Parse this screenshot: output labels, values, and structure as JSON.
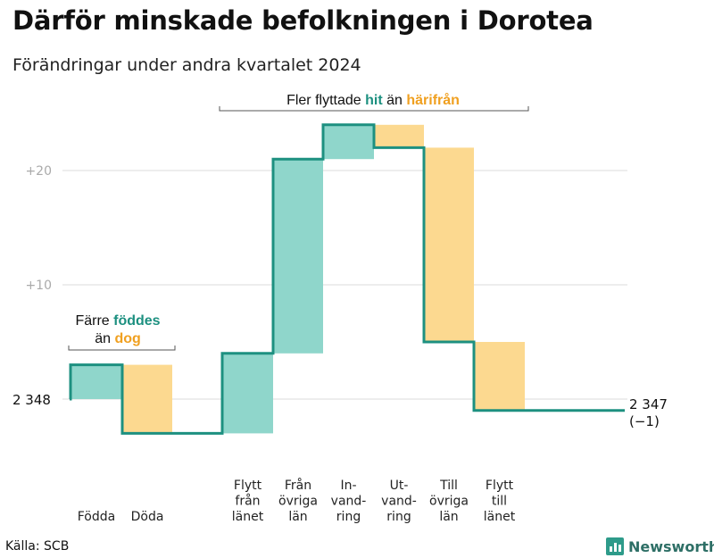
{
  "title": "Därför minskade befolkningen i Dorotea",
  "subtitle": "Förändringar under andra kvartalet 2024",
  "source": "Källa: SCB",
  "brand": "Newsworthy",
  "colors": {
    "increase": "#8fd6cb",
    "decrease": "#fcd990",
    "line": "#1d9080",
    "grid": "#e2e2e2",
    "teal_text": "#1d9080",
    "orange_text": "#f0a020"
  },
  "chart_data": {
    "type": "waterfall",
    "start_value": 2348,
    "start_label": "2 348",
    "end_value": 2347,
    "end_label": "2 347",
    "end_change_label": "(−1)",
    "ylim": [
      -3,
      24
    ],
    "yticks": [
      {
        "value": 20,
        "label": "+20"
      },
      {
        "value": 10,
        "label": "+10"
      }
    ],
    "steps": [
      {
        "label_lines": [
          "Födda"
        ],
        "change": 3,
        "kind": "increase"
      },
      {
        "label_lines": [
          "Döda"
        ],
        "change": -6,
        "kind": "decrease"
      },
      {
        "label_lines": [
          "Flytt",
          "från",
          "länet"
        ],
        "change": 7,
        "kind": "increase"
      },
      {
        "label_lines": [
          "Från",
          "övriga",
          "län"
        ],
        "change": 17,
        "kind": "increase"
      },
      {
        "label_lines": [
          "In-",
          "vand-",
          "ring"
        ],
        "change": 3,
        "kind": "increase"
      },
      {
        "label_lines": [
          "Ut-",
          "vand-",
          "ring"
        ],
        "change": -2,
        "kind": "decrease"
      },
      {
        "label_lines": [
          "Till",
          "övriga",
          "län"
        ],
        "change": -17,
        "kind": "decrease"
      },
      {
        "label_lines": [
          "Flytt",
          "till",
          "länet"
        ],
        "change": -6,
        "kind": "decrease"
      }
    ],
    "annotations": {
      "natural": {
        "line1_prefix": "Färre ",
        "line1_highlight": "föddes",
        "line2_prefix": "än ",
        "line2_highlight": "dog"
      },
      "migration": {
        "prefix": "Fler flyttade ",
        "highlight1": "hit",
        "middle": " än ",
        "highlight2": "härifrån"
      }
    }
  }
}
